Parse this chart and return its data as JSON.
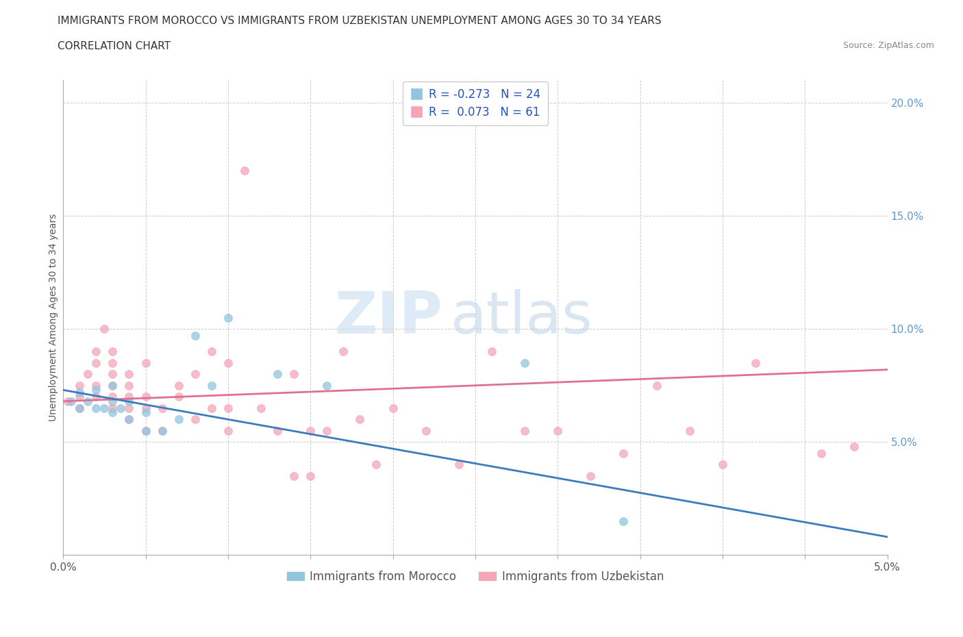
{
  "title_line1": "IMMIGRANTS FROM MOROCCO VS IMMIGRANTS FROM UZBEKISTAN UNEMPLOYMENT AMONG AGES 30 TO 34 YEARS",
  "title_line2": "CORRELATION CHART",
  "source_text": "Source: ZipAtlas.com",
  "ylabel": "Unemployment Among Ages 30 to 34 years",
  "xlim": [
    0.0,
    0.05
  ],
  "ylim": [
    0.0,
    0.21
  ],
  "x_ticks": [
    0.0,
    0.005,
    0.01,
    0.015,
    0.02,
    0.025,
    0.03,
    0.035,
    0.04,
    0.045,
    0.05
  ],
  "x_tick_labels": [
    "0.0%",
    "",
    "",
    "",
    "",
    "",
    "",
    "",
    "",
    "",
    "5.0%"
  ],
  "y_ticks": [
    0.0,
    0.05,
    0.1,
    0.15,
    0.2
  ],
  "y_tick_labels": [
    "",
    "5.0%",
    "10.0%",
    "15.0%",
    "20.0%"
  ],
  "morocco_color": "#92c5de",
  "uzbekistan_color": "#f4a6b8",
  "morocco_line_color": "#3a7bbf",
  "uzbekistan_line_color": "#e07090",
  "watermark_zip": "ZIP",
  "watermark_atlas": "atlas",
  "morocco_scatter_x": [
    0.0005,
    0.001,
    0.001,
    0.0015,
    0.002,
    0.002,
    0.0025,
    0.003,
    0.003,
    0.003,
    0.0035,
    0.004,
    0.004,
    0.005,
    0.005,
    0.006,
    0.007,
    0.008,
    0.009,
    0.01,
    0.013,
    0.016,
    0.028,
    0.034
  ],
  "morocco_scatter_y": [
    0.068,
    0.065,
    0.072,
    0.068,
    0.065,
    0.073,
    0.065,
    0.063,
    0.068,
    0.075,
    0.065,
    0.06,
    0.068,
    0.055,
    0.063,
    0.055,
    0.06,
    0.097,
    0.075,
    0.105,
    0.08,
    0.075,
    0.085,
    0.015
  ],
  "uzbekistan_scatter_x": [
    0.0003,
    0.001,
    0.001,
    0.001,
    0.0015,
    0.002,
    0.002,
    0.002,
    0.002,
    0.0025,
    0.003,
    0.003,
    0.003,
    0.003,
    0.003,
    0.003,
    0.004,
    0.004,
    0.004,
    0.004,
    0.004,
    0.005,
    0.005,
    0.005,
    0.005,
    0.006,
    0.006,
    0.007,
    0.007,
    0.008,
    0.008,
    0.009,
    0.009,
    0.01,
    0.01,
    0.01,
    0.011,
    0.012,
    0.013,
    0.014,
    0.014,
    0.015,
    0.015,
    0.016,
    0.017,
    0.018,
    0.019,
    0.02,
    0.022,
    0.024,
    0.026,
    0.028,
    0.03,
    0.032,
    0.034,
    0.036,
    0.038,
    0.04,
    0.042,
    0.046,
    0.048
  ],
  "uzbekistan_scatter_y": [
    0.068,
    0.065,
    0.07,
    0.075,
    0.08,
    0.07,
    0.075,
    0.085,
    0.09,
    0.1,
    0.065,
    0.07,
    0.075,
    0.08,
    0.085,
    0.09,
    0.06,
    0.065,
    0.07,
    0.075,
    0.08,
    0.055,
    0.065,
    0.07,
    0.085,
    0.055,
    0.065,
    0.07,
    0.075,
    0.06,
    0.08,
    0.065,
    0.09,
    0.055,
    0.065,
    0.085,
    0.17,
    0.065,
    0.055,
    0.035,
    0.08,
    0.035,
    0.055,
    0.055,
    0.09,
    0.06,
    0.04,
    0.065,
    0.055,
    0.04,
    0.09,
    0.055,
    0.055,
    0.035,
    0.045,
    0.075,
    0.055,
    0.04,
    0.085,
    0.045,
    0.048
  ],
  "morocco_trend_x": [
    0.0,
    0.05
  ],
  "morocco_trend_y": [
    0.073,
    0.008
  ],
  "uzbekistan_trend_x": [
    0.0,
    0.05
  ],
  "uzbekistan_trend_y": [
    0.068,
    0.082
  ],
  "grid_color": "#cccccc",
  "grid_style": "--",
  "background_color": "#ffffff",
  "title_fontsize": 11,
  "axis_label_fontsize": 10,
  "tick_fontsize": 11,
  "legend_fontsize": 12
}
